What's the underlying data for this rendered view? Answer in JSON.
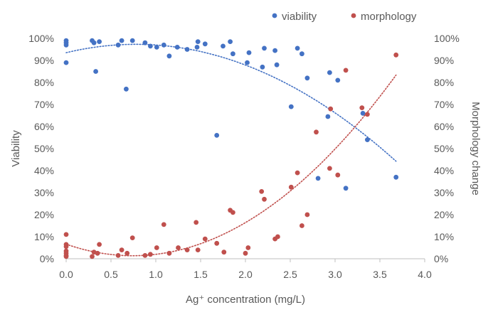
{
  "chart_data": {
    "type": "scatter",
    "title": "",
    "xlabel": "Ag⁺ concentration (mg/L)",
    "ylabel_left": "Viability",
    "ylabel_right": "Morphology change",
    "xlim": [
      0,
      4
    ],
    "ylim": [
      0,
      100
    ],
    "x_ticks": [
      "0.0",
      "0.5",
      "1.0",
      "1.5",
      "2.0",
      "2.5",
      "3.0",
      "3.5",
      "4.0"
    ],
    "y_ticks_left": [
      "0%",
      "10%",
      "20%",
      "30%",
      "40%",
      "50%",
      "60%",
      "70%",
      "80%",
      "90%",
      "100%"
    ],
    "y_ticks_right": [
      "0%",
      "10%",
      "20%",
      "30%",
      "40%",
      "50%",
      "60%",
      "70%",
      "80%",
      "90%",
      "100%"
    ],
    "grid": false,
    "legend_position": "top-right",
    "series": [
      {
        "name": "viability",
        "color": "#4472c4",
        "trendline": {
          "kind": "polynomial-2",
          "coef": [
            93.5,
            9.8,
            -6.3
          ],
          "x_range": [
            0,
            3.68
          ]
        },
        "points": [
          [
            0.0,
            99
          ],
          [
            0.0,
            98
          ],
          [
            0.0,
            97
          ],
          [
            0.0,
            89
          ],
          [
            0.29,
            99
          ],
          [
            0.31,
            98
          ],
          [
            0.33,
            85
          ],
          [
            0.37,
            98.5
          ],
          [
            0.58,
            97
          ],
          [
            0.62,
            99
          ],
          [
            0.67,
            77
          ],
          [
            0.74,
            99
          ],
          [
            0.88,
            98
          ],
          [
            0.94,
            96.5
          ],
          [
            1.01,
            96
          ],
          [
            1.09,
            97
          ],
          [
            1.15,
            92
          ],
          [
            1.24,
            96
          ],
          [
            1.35,
            95
          ],
          [
            1.46,
            96
          ],
          [
            1.47,
            98.5
          ],
          [
            1.55,
            97.5
          ],
          [
            1.68,
            56
          ],
          [
            1.75,
            96.5
          ],
          [
            1.83,
            98.5
          ],
          [
            1.86,
            93
          ],
          [
            2.02,
            89
          ],
          [
            2.04,
            93.5
          ],
          [
            2.19,
            87
          ],
          [
            2.21,
            95.5
          ],
          [
            2.33,
            94.5
          ],
          [
            2.35,
            88
          ],
          [
            2.51,
            69
          ],
          [
            2.58,
            95.5
          ],
          [
            2.63,
            93
          ],
          [
            2.69,
            82
          ],
          [
            2.81,
            36.5
          ],
          [
            2.92,
            64.5
          ],
          [
            2.94,
            84.5
          ],
          [
            3.03,
            81
          ],
          [
            3.12,
            32
          ],
          [
            3.31,
            66
          ],
          [
            3.36,
            54
          ],
          [
            3.68,
            37
          ]
        ]
      },
      {
        "name": "morphology",
        "color": "#c0504d",
        "trendline": {
          "kind": "polynomial-2",
          "coef": [
            6.6,
            -14.1,
            9.5
          ],
          "x_range": [
            0,
            3.68
          ]
        },
        "points": [
          [
            0.0,
            11
          ],
          [
            0.0,
            6.5
          ],
          [
            0.0,
            5.5
          ],
          [
            0.0,
            3.5
          ],
          [
            0.0,
            2.5
          ],
          [
            0.0,
            1.5
          ],
          [
            0.0,
            1
          ],
          [
            0.29,
            1
          ],
          [
            0.31,
            3
          ],
          [
            0.35,
            2.5
          ],
          [
            0.37,
            6.5
          ],
          [
            0.58,
            1.5
          ],
          [
            0.62,
            4
          ],
          [
            0.68,
            2.5
          ],
          [
            0.74,
            9.5
          ],
          [
            0.88,
            1.5
          ],
          [
            0.94,
            2
          ],
          [
            1.01,
            5
          ],
          [
            1.09,
            15.5
          ],
          [
            1.15,
            2.5
          ],
          [
            1.25,
            5
          ],
          [
            1.35,
            4
          ],
          [
            1.45,
            16.5
          ],
          [
            1.47,
            4
          ],
          [
            1.55,
            9
          ],
          [
            1.68,
            7
          ],
          [
            1.76,
            3
          ],
          [
            1.83,
            22
          ],
          [
            1.86,
            21
          ],
          [
            2.0,
            2.5
          ],
          [
            2.03,
            5
          ],
          [
            2.18,
            30.5
          ],
          [
            2.21,
            27
          ],
          [
            2.33,
            9
          ],
          [
            2.36,
            10
          ],
          [
            2.51,
            32.5
          ],
          [
            2.58,
            39
          ],
          [
            2.63,
            15
          ],
          [
            2.69,
            20
          ],
          [
            2.79,
            57.5
          ],
          [
            2.94,
            41
          ],
          [
            2.95,
            68
          ],
          [
            3.03,
            38
          ],
          [
            3.12,
            85.5
          ],
          [
            3.3,
            68.5
          ],
          [
            3.36,
            65.5
          ],
          [
            3.68,
            92.5
          ]
        ]
      }
    ]
  }
}
